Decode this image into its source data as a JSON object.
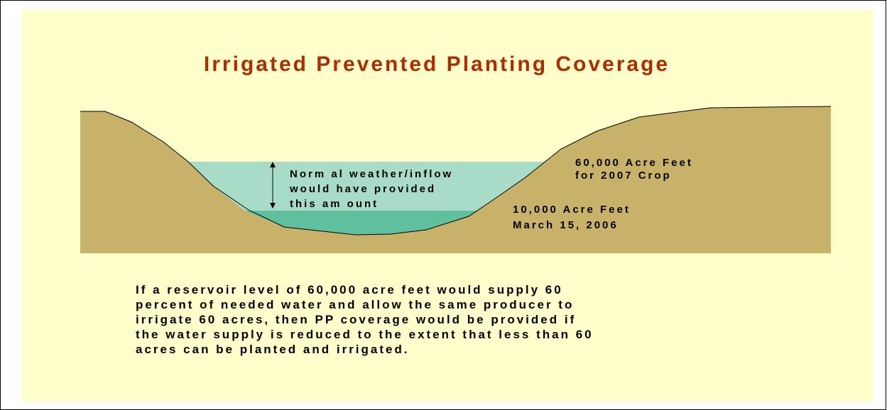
{
  "title": "Irrigated Prevented Planting Coverage",
  "labels": {
    "normal": [
      "Norm al weather/inflow",
      "would have provided",
      "this am ount"
    ],
    "full": [
      "60,000 Acre Feet",
      "for 2007 Crop"
    ],
    "current": [
      "10,000 Acre Feet",
      "March 15, 2006"
    ]
  },
  "body": [
    "If a reservoir level of 60,000 acre feet would supply 60",
    "percent of needed water and allow the same producer to",
    "irrigate 60 acres, then PP coverage would be provided if",
    "the water supply is reduced to the extent that less than 60",
    "acres can be planted and irrigated."
  ]
}
